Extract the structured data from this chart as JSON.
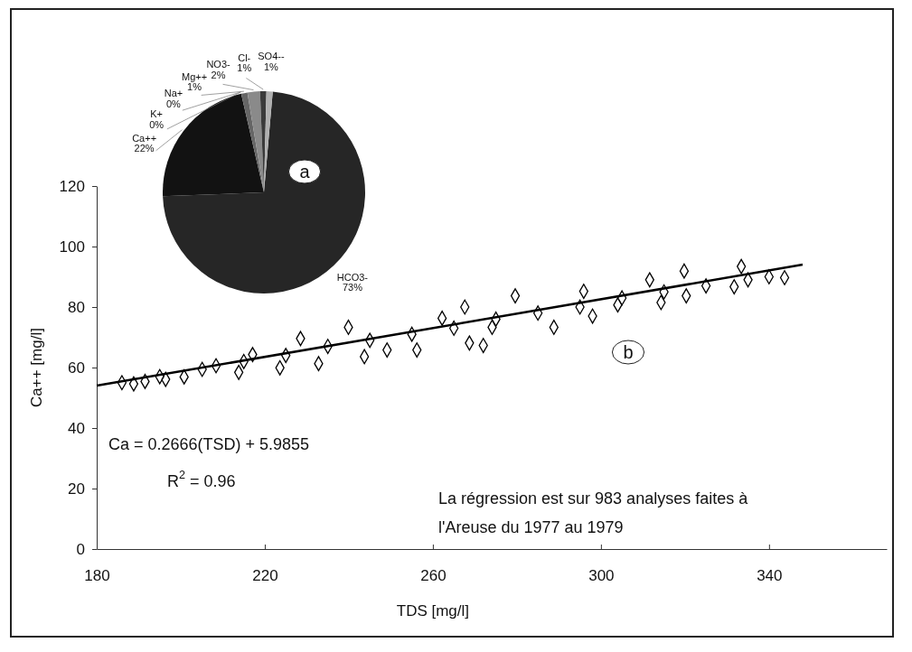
{
  "chart_data": [
    {
      "type": "pie",
      "categories": [
        "HCO3-",
        "Ca++",
        "K+",
        "Na+",
        "Mg++",
        "NO3-",
        "Cl-",
        "SO4--"
      ],
      "values": [
        73,
        22,
        0,
        0,
        1,
        2,
        1,
        1
      ],
      "colors": [
        "#262626",
        "#121212",
        "#444444",
        "#555555",
        "#666666",
        "#8a8a8a",
        "#3a3a3a",
        "#b0b0b0"
      ],
      "value_labels": [
        "73%",
        "22%",
        "0%",
        "0%",
        "1%",
        "2%",
        "1%",
        "1%"
      ],
      "annotations": [
        "a"
      ]
    },
    {
      "type": "scatter",
      "xlabel": "TDS [mg/l]",
      "ylabel": "Ca++ [mg/l]",
      "xlim": [
        180,
        368
      ],
      "ylim": [
        0,
        120
      ],
      "xticks": [
        180,
        220,
        260,
        300,
        340
      ],
      "yticks": [
        0,
        20,
        40,
        60,
        80,
        100,
        120
      ],
      "series": [
        {
          "type": "scatter",
          "color": "#000000",
          "marker": "diamond",
          "x": [
            188.8,
            191.5,
            196.4,
            200.8,
            205.1,
            208.4,
            213.8,
            217.1,
            223.6,
            228.5,
            232.8,
            239.9,
            243.7,
            249.1,
            256.2,
            262.2,
            267.6,
            268.7,
            272,
            274.1,
            279.6,
            288.8,
            295.9,
            298,
            304,
            311.6,
            314.3,
            319.8,
            320.3,
            331.7,
            333.4,
            343.7,
            186,
            195,
            215,
            225,
            235,
            245,
            255,
            265,
            275,
            285,
            295,
            305,
            315,
            325,
            335,
            340
          ],
          "values": [
            54.6,
            55.4,
            56.1,
            56.9,
            59.4,
            60.6,
            58.4,
            64.3,
            59.9,
            69.6,
            61.3,
            73.3,
            63.6,
            65.8,
            65.8,
            76.3,
            80.0,
            68.1,
            67.3,
            73.3,
            83.7,
            73.3,
            85.2,
            77.0,
            80.7,
            89.0,
            81.5,
            91.9,
            83.7,
            86.7,
            93.4,
            89.7,
            55,
            57,
            62,
            64,
            67,
            69,
            71,
            73,
            76,
            78,
            80,
            83,
            85,
            87,
            89,
            90
          ]
        },
        {
          "type": "line",
          "color": "#000000",
          "marker": "none",
          "x": [
            180,
            348
          ],
          "values": [
            54,
            94
          ]
        }
      ],
      "annotations": [
        "Ca = 0.2666(TSD) + 5.9855",
        "R$^{2}$ = 0.96",
        "La régression est sur 983 analyses faites à l'Areuse du 1977 au 1979",
        "b"
      ]
    }
  ]
}
